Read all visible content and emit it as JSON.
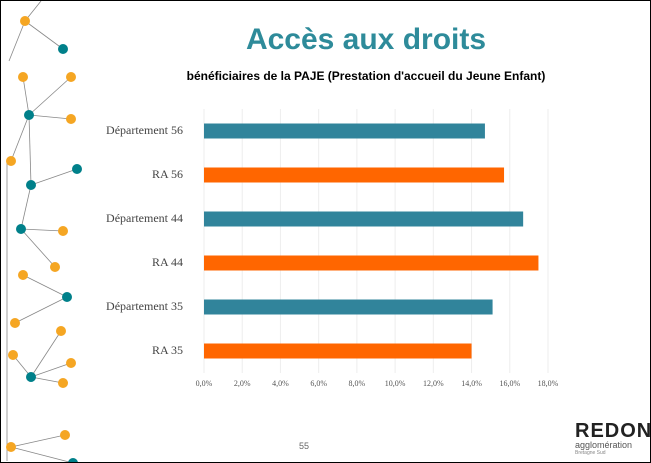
{
  "page_title": "Accès aux droits",
  "page_number": "55",
  "logo": {
    "name": "REDON",
    "subtitle": "agglomération",
    "tagline": "Bretagne Sud"
  },
  "chart_data": {
    "type": "hbar",
    "title": "bénéficiaires de la PAJE (Prestation d'accueil du Jeune Enfant)",
    "categories": [
      "Département 56",
      "RA 56",
      "Département 44",
      "RA 44",
      "Département 35",
      "RA 35"
    ],
    "values": [
      14.7,
      15.7,
      16.7,
      17.5,
      15.1,
      14.0
    ],
    "colors": [
      "#31849b",
      "#ff6600",
      "#31849b",
      "#ff6600",
      "#31849b",
      "#ff6600"
    ],
    "xlim": [
      0,
      18
    ],
    "xticks": [
      {
        "value": 0,
        "label": "0,0%"
      },
      {
        "value": 2,
        "label": "2,0%"
      },
      {
        "value": 4,
        "label": "4,0%"
      },
      {
        "value": 6,
        "label": "6,0%"
      },
      {
        "value": 8,
        "label": "8,0%"
      },
      {
        "value": 10,
        "label": "10,0%"
      },
      {
        "value": 12,
        "label": "12,0%"
      },
      {
        "value": 14,
        "label": "14,0%"
      },
      {
        "value": 16,
        "label": "16,0%"
      },
      {
        "value": 18,
        "label": "18,0%"
      }
    ],
    "grid": true
  }
}
